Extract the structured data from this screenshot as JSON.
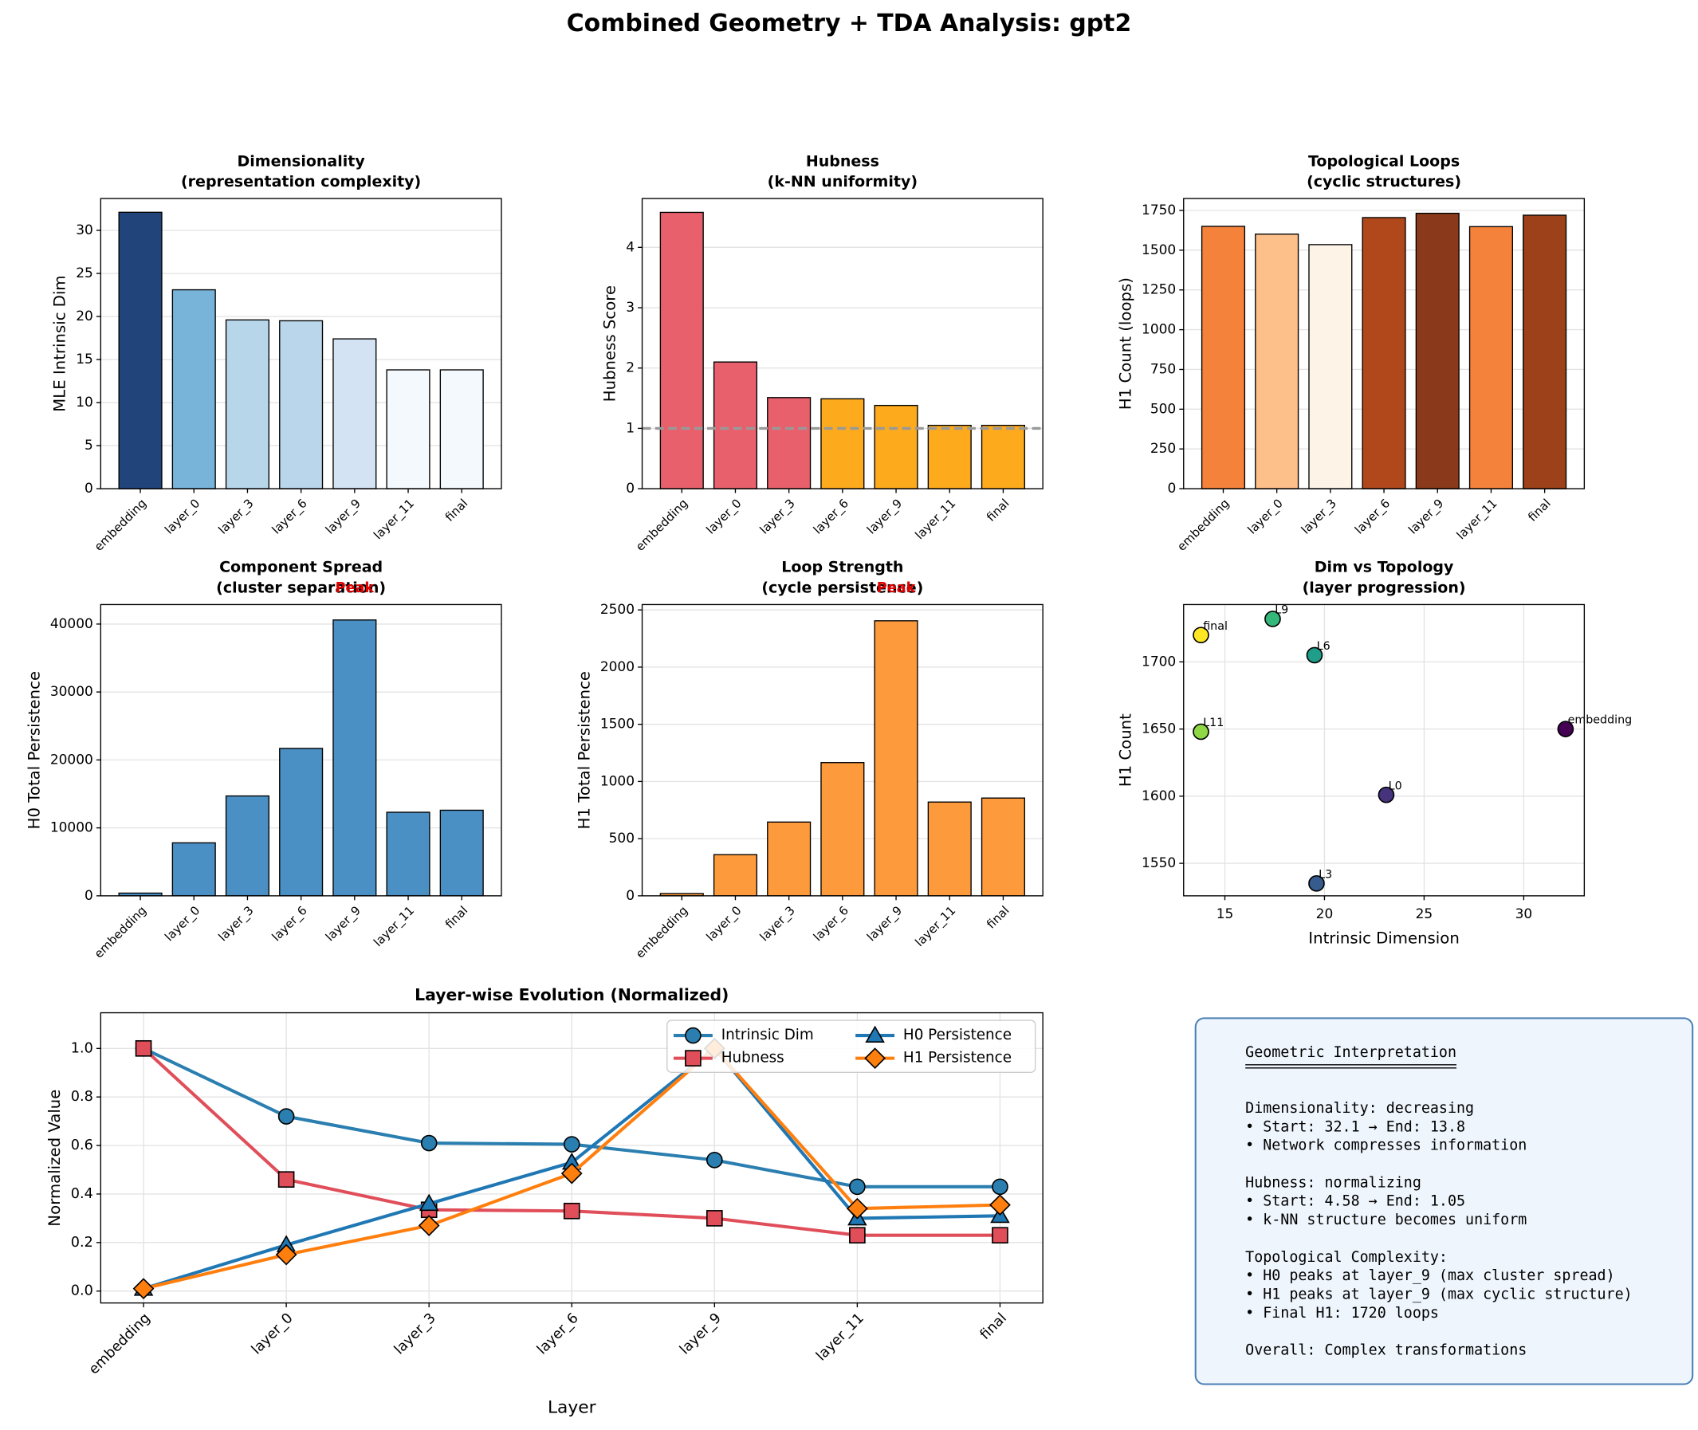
{
  "title": "Combined Geometry + TDA Analysis: gpt2",
  "chart_data": [
    {
      "type": "bar",
      "title": "Dimensionality",
      "subtitle": "(representation complexity)",
      "ylabel": "MLE Intrinsic Dim",
      "categories": [
        "embedding",
        "layer_0",
        "layer_3",
        "layer_6",
        "layer_9",
        "layer_11",
        "final"
      ],
      "values": [
        32.1,
        23.1,
        19.6,
        19.5,
        17.4,
        13.8,
        13.8
      ],
      "colors": [
        "#21457a",
        "#78b4da",
        "#b8d6ea",
        "#b9d6ea",
        "#d3e3f3",
        "#f4f9fe",
        "#f4f9fe"
      ],
      "ylim": [
        0,
        33.7
      ],
      "yticks": [
        0,
        5,
        10,
        15,
        20,
        25,
        30
      ],
      "grid": true
    },
    {
      "type": "bar",
      "title": "Hubness",
      "subtitle": "(k-NN uniformity)",
      "ylabel": "Hubness Score",
      "categories": [
        "embedding",
        "layer_0",
        "layer_3",
        "layer_6",
        "layer_9",
        "layer_11",
        "final"
      ],
      "values": [
        4.58,
        2.1,
        1.51,
        1.49,
        1.38,
        1.05,
        1.05
      ],
      "colors": [
        "#e8606c",
        "#e8606c",
        "#e8606c",
        "#fdaa1c",
        "#fdaa1c",
        "#fdaa1c",
        "#fdaa1c"
      ],
      "hline": 1,
      "ylim": [
        0,
        4.81
      ],
      "yticks": [
        0,
        1,
        2,
        3,
        4
      ],
      "grid": true
    },
    {
      "type": "bar",
      "title": "Topological Loops",
      "subtitle": "(cyclic structures)",
      "ylabel": "H1 Count (loops)",
      "categories": [
        "embedding",
        "layer_0",
        "layer_3",
        "layer_6",
        "layer_9",
        "layer_11",
        "final"
      ],
      "values": [
        1650,
        1601,
        1535,
        1705,
        1732,
        1648,
        1720
      ],
      "colors": [
        "#f5823a",
        "#fdc08b",
        "#fef3e7",
        "#b0481c",
        "#8a3a1a",
        "#f5823a",
        "#9c4119"
      ],
      "ylim": [
        0,
        1825
      ],
      "yticks": [
        0,
        250,
        500,
        750,
        1000,
        1250,
        1500,
        1750
      ],
      "grid": true
    },
    {
      "type": "bar",
      "title": "Component Spread",
      "subtitle": "(cluster separation)",
      "ylabel": "H0 Total Persistence",
      "annotation": "Peak",
      "categories": [
        "embedding",
        "layer_0",
        "layer_3",
        "layer_6",
        "layer_9",
        "layer_11",
        "final"
      ],
      "values": [
        400,
        7800,
        14700,
        21700,
        40600,
        12300,
        12600
      ],
      "color": "#4a90c4",
      "ylim": [
        0,
        42870
      ],
      "yticks": [
        0,
        10000,
        20000,
        30000,
        40000
      ],
      "grid": true
    },
    {
      "type": "bar",
      "title": "Loop Strength",
      "subtitle": "(cycle persistence)",
      "ylabel": "H1 Total Persistence",
      "annotation": "Peak",
      "categories": [
        "embedding",
        "layer_0",
        "layer_3",
        "layer_6",
        "layer_9",
        "layer_11",
        "final"
      ],
      "values": [
        20,
        360,
        645,
        1165,
        2405,
        820,
        855
      ],
      "color": "#fd9a3c",
      "ylim": [
        0,
        2547
      ],
      "yticks": [
        0,
        500,
        1000,
        1500,
        2000,
        2500
      ],
      "grid": true
    },
    {
      "type": "scatter",
      "title": "Dim vs Topology",
      "subtitle": "(layer progression)",
      "xlabel": "Intrinsic Dimension",
      "ylabel": "H1 Count",
      "point_labels": [
        "embedding",
        "L0",
        "L3",
        "L6",
        "L9",
        "L11",
        "final"
      ],
      "x": [
        32.1,
        23.1,
        19.6,
        19.5,
        17.4,
        13.8,
        13.8
      ],
      "values": [
        1650,
        1601,
        1535,
        1705,
        1732,
        1648,
        1720
      ],
      "colors": [
        "#440154",
        "#46337e",
        "#365c8d",
        "#1f9e89",
        "#35b779",
        "#8fd744",
        "#fde725"
      ],
      "xlim": [
        12.93,
        33.04
      ],
      "xticks": [
        15,
        20,
        25,
        30
      ],
      "ylim": [
        1525.8,
        1742.7
      ],
      "yticks": [
        1550,
        1600,
        1650,
        1700
      ],
      "grid": true
    },
    {
      "type": "line",
      "title": "Layer-wise Evolution (Normalized)",
      "xlabel": "Layer",
      "ylabel": "Normalized Value",
      "categories": [
        "embedding",
        "layer_0",
        "layer_3",
        "layer_6",
        "layer_9",
        "layer_11",
        "final"
      ],
      "series": [
        {
          "name": "Intrinsic Dim",
          "color": "#2a7fb0",
          "marker": "circle",
          "values": [
            1.0,
            0.72,
            0.61,
            0.605,
            0.54,
            0.43,
            0.43
          ]
        },
        {
          "name": "Hubness",
          "color": "#e04e5a",
          "marker": "square",
          "values": [
            1.0,
            0.46,
            0.335,
            0.33,
            0.3,
            0.23,
            0.23
          ]
        },
        {
          "name": "H0 Persistence",
          "color": "#1f77b4",
          "marker": "triangle",
          "values": [
            0.01,
            0.19,
            0.36,
            0.53,
            1.0,
            0.3,
            0.31
          ]
        },
        {
          "name": "H1 Persistence",
          "color": "#ff7f0e",
          "marker": "diamond",
          "values": [
            0.01,
            0.15,
            0.27,
            0.485,
            1.0,
            0.34,
            0.355
          ]
        }
      ],
      "ylim": [
        -0.049,
        1.147
      ],
      "yticks": [
        {
          "value": 0,
          "label": "0.0"
        },
        0.2,
        0.4,
        0.6,
        0.8,
        {
          "value": 1,
          "label": "1.0"
        }
      ],
      "grid": true,
      "legend": "upper right"
    }
  ],
  "text_box": {
    "title": "Geometric Interpretation",
    "sections": [
      [
        "Dimensionality: decreasing",
        "• Start: 32.1 → End: 13.8",
        "• Network compresses information"
      ],
      [
        "Hubness: normalizing",
        "• Start: 4.58 → End: 1.05",
        "• k-NN structure becomes uniform"
      ],
      [
        "Topological Complexity:",
        "• H0 peaks at layer_9 (max cluster spread)",
        "• H1 peaks at layer_9 (max cyclic structure)",
        "• Final H1: 1720 loops"
      ],
      [
        "Overall: Complex transformations"
      ]
    ]
  }
}
